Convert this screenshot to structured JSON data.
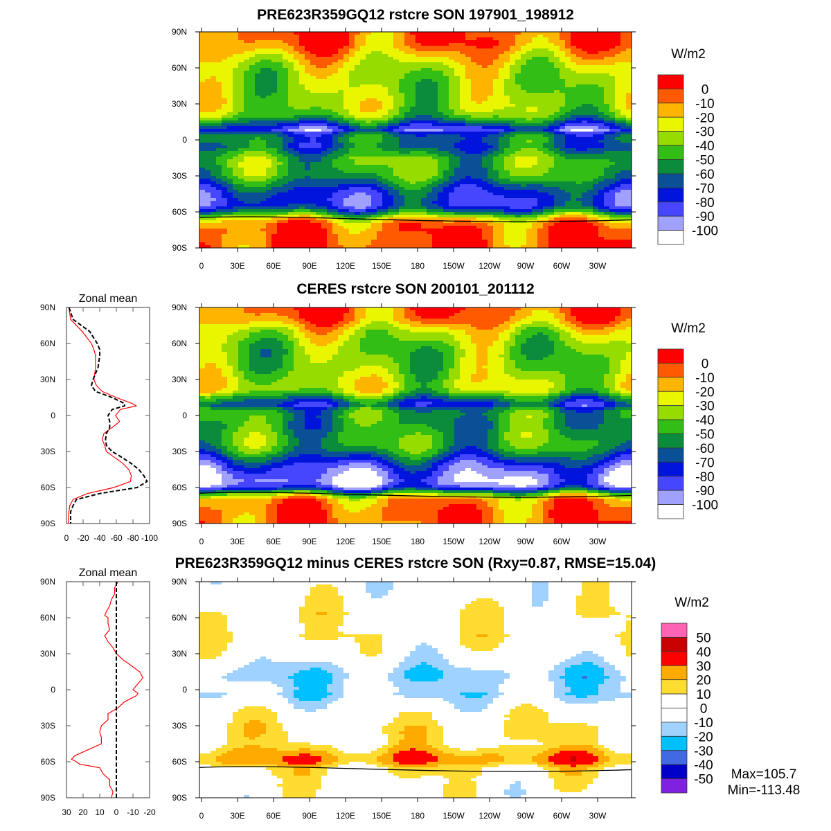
{
  "chart_data": [
    {
      "id": "model_map",
      "type": "heatmap",
      "title": "PRE623R359GQ12 rstcre SON 197901_198912",
      "units": "W/m2",
      "lat_ticks": [
        "90N",
        "60N",
        "30N",
        "0",
        "30S",
        "60S",
        "90S"
      ],
      "lon_ticks": [
        "0",
        "30E",
        "60E",
        "90E",
        "120E",
        "150E",
        "180",
        "150W",
        "120W",
        "90W",
        "60W",
        "30W"
      ],
      "colorbar": {
        "labels": [
          "0",
          "-10",
          "-20",
          "-30",
          "-40",
          "-50",
          "-60",
          "-70",
          "-80",
          "-90",
          "-100"
        ],
        "colors": [
          "#ff0000",
          "#ff5a00",
          "#ffb400",
          "#eaf500",
          "#96dc00",
          "#32be14",
          "#0a8c3c",
          "#0a5096",
          "#0014dc",
          "#4646ff",
          "#a0a0ff",
          "#ffffff"
        ]
      },
      "profile_ref": "model"
    },
    {
      "id": "obs_map",
      "type": "heatmap",
      "title": "CERES rstcre SON 200101_201112",
      "units": "W/m2",
      "lat_ticks": [
        "90N",
        "60N",
        "30N",
        "0",
        "30S",
        "60S",
        "90S"
      ],
      "lon_ticks": [
        "0",
        "30E",
        "60E",
        "90E",
        "120E",
        "150E",
        "180",
        "150W",
        "120W",
        "90W",
        "60W",
        "30W"
      ],
      "colorbar": {
        "labels": [
          "0",
          "-10",
          "-20",
          "-30",
          "-40",
          "-50",
          "-60",
          "-70",
          "-80",
          "-90",
          "-100"
        ],
        "colors": [
          "#ff0000",
          "#ff5a00",
          "#ffb400",
          "#eaf500",
          "#96dc00",
          "#32be14",
          "#0a8c3c",
          "#0a5096",
          "#0014dc",
          "#4646ff",
          "#a0a0ff",
          "#ffffff"
        ]
      },
      "profile_ref": "obs"
    },
    {
      "id": "diff_map",
      "type": "heatmap",
      "title": "PRE623R359GQ12 minus CERES rstcre SON (Rxy=0.87, RMSE=15.04)",
      "units": "W/m2",
      "lat_ticks": [
        "90N",
        "60N",
        "30N",
        "0",
        "30S",
        "60S",
        "90S"
      ],
      "lon_ticks": [
        "0",
        "30E",
        "60E",
        "90E",
        "120E",
        "150E",
        "180",
        "150W",
        "120W",
        "90W",
        "60W",
        "30W"
      ],
      "colorbar": {
        "labels": [
          "50",
          "40",
          "30",
          "20",
          "10",
          "0",
          "-10",
          "-20",
          "-30",
          "-40",
          "-50"
        ],
        "colors": [
          "#ff64b4",
          "#c80000",
          "#ff0000",
          "#ffaa00",
          "#ffdc32",
          "#ffffff",
          "#ffffff",
          "#a0d2ff",
          "#00c0ff",
          "#4169e1",
          "#0000c8",
          "#8020e0"
        ]
      },
      "max_label": "Max=105.7",
      "min_label": "Min=-113.48",
      "profile_ref": "diff"
    },
    {
      "id": "zonal_mean_fields",
      "type": "line",
      "title": "Zonal mean",
      "xlim": [
        0,
        -100
      ],
      "x_ticks": [
        "0",
        "-20",
        "-40",
        "-60",
        "-80",
        "-100"
      ],
      "x_tick_values": [
        0,
        -20,
        -40,
        -60,
        -80,
        -100
      ],
      "lat_ticks": [
        "90N",
        "60N",
        "30N",
        "0",
        "30S",
        "60S",
        "90S"
      ],
      "lat": [
        90,
        80,
        70,
        60,
        55,
        50,
        40,
        30,
        25,
        20,
        15,
        10,
        8,
        5,
        0,
        -5,
        -10,
        -15,
        -20,
        -25,
        -30,
        -35,
        -40,
        -45,
        -50,
        -55,
        -60,
        -65,
        -70,
        -75,
        -80,
        -90
      ],
      "series": [
        {
          "name": "model",
          "color": "#ff0000",
          "style": "solid",
          "values": [
            -3,
            -5,
            -19,
            -30,
            -33,
            -35,
            -35,
            -33,
            -36,
            -43,
            -60,
            -79,
            -84,
            -65,
            -59,
            -64,
            -55,
            -45,
            -43,
            -46,
            -48,
            -58,
            -68,
            -75,
            -78,
            -77,
            -57,
            -25,
            -8,
            -4,
            -3,
            -2
          ]
        },
        {
          "name": "obs",
          "color": "#000000",
          "style": "dashed",
          "values": [
            -3,
            -8,
            -28,
            -37,
            -40,
            -40,
            -38,
            -32,
            -30,
            -35,
            -55,
            -70,
            -70,
            -55,
            -50,
            -52,
            -52,
            -48,
            -47,
            -48,
            -55,
            -67,
            -78,
            -87,
            -93,
            -97,
            -85,
            -40,
            -12,
            -8,
            -5,
            -5
          ]
        }
      ]
    },
    {
      "id": "zonal_mean_diff",
      "type": "line",
      "title": "Zonal mean",
      "xlim": [
        30,
        -20
      ],
      "x_ticks": [
        "30",
        "20",
        "10",
        "0",
        "-10",
        "-20"
      ],
      "x_tick_values": [
        30,
        20,
        10,
        0,
        -10,
        -20
      ],
      "lat_ticks": [
        "90N",
        "60N",
        "30N",
        "0",
        "30S",
        "60S",
        "90S"
      ],
      "lat": [
        90,
        85,
        80,
        75,
        70,
        65,
        62,
        60,
        55,
        50,
        45,
        40,
        35,
        30,
        25,
        20,
        15,
        10,
        5,
        0,
        -3,
        -5,
        -10,
        -15,
        -20,
        -25,
        -30,
        -35,
        -40,
        -45,
        -50,
        -55,
        -58,
        -60,
        -62,
        -65,
        -70,
        -75,
        -80,
        -85,
        -90
      ],
      "series": [
        {
          "name": "diff",
          "color": "#ff0000",
          "style": "solid",
          "values": [
            -1,
            1,
            1,
            3,
            4,
            6,
            7,
            5,
            5,
            4,
            7,
            5,
            2,
            0,
            -4,
            -9,
            -14,
            -16,
            -13,
            -10,
            -13,
            -12,
            -5,
            -1,
            5,
            5,
            9,
            10,
            9,
            9,
            17,
            25,
            27,
            24,
            22,
            10,
            8,
            4,
            4,
            2,
            3
          ]
        },
        {
          "name": "zero",
          "color": "#000000",
          "style": "dashed",
          "values": [
            0,
            0
          ]
        }
      ]
    }
  ]
}
